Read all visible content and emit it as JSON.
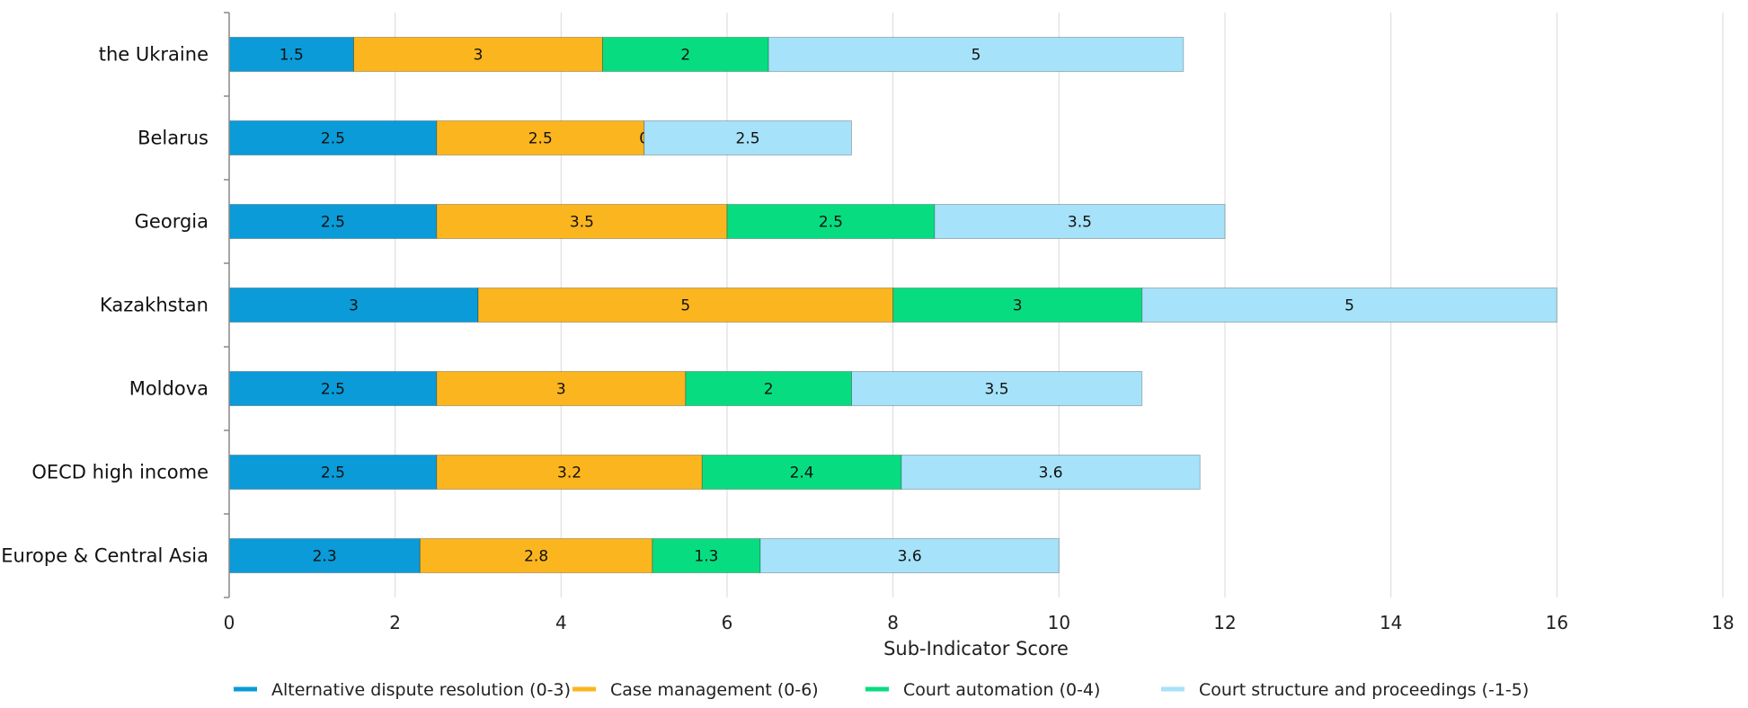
{
  "chart_data": {
    "type": "bar",
    "orientation": "horizontal",
    "stacked": true,
    "categories": [
      "the Ukraine",
      "Belarus",
      "Georgia",
      "Kazakhstan",
      "Moldova",
      "OECD high income",
      "Europe & Central Asia"
    ],
    "series": [
      {
        "name": "Alternative dispute resolution (0-3)",
        "color": "#0a9bd8",
        "values": [
          1.5,
          2.5,
          2.5,
          3,
          2.5,
          2.5,
          2.3
        ]
      },
      {
        "name": "Case management (0-6)",
        "color": "#fbb51f",
        "values": [
          3,
          2.5,
          3.5,
          5,
          3,
          3.2,
          2.8
        ]
      },
      {
        "name": "Court automation (0-4)",
        "color": "#07dd80",
        "values": [
          2,
          0,
          2.5,
          3,
          2,
          2.4,
          1.3
        ]
      },
      {
        "name": "Court structure and proceedings (-1-5)",
        "color": "#a6e2f9",
        "values": [
          5,
          2.5,
          3.5,
          5,
          3.5,
          3.6,
          3.6
        ]
      }
    ],
    "xlabel": "Sub-Indicator Score",
    "xlim": [
      0,
      18
    ],
    "xticks": [
      0,
      2,
      4,
      6,
      8,
      10,
      12,
      14,
      16,
      18
    ],
    "grid": true,
    "legend_position": "bottom"
  }
}
